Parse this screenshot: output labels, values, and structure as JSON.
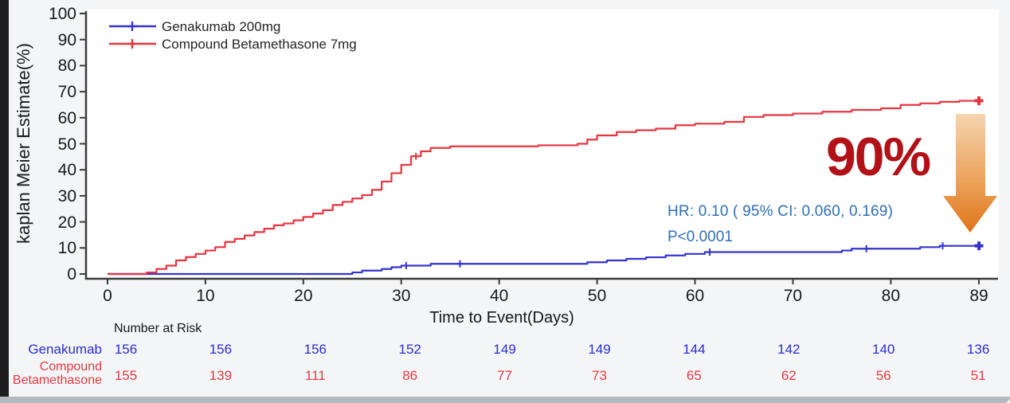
{
  "legend": [
    {
      "label": "Genakumab 200mg",
      "color": "#3534cf"
    },
    {
      "label": "Compound Betamethasone 7mg",
      "color": "#e63540"
    }
  ],
  "annotations": {
    "hr_text": "HR:  0.10  ( 95% CI:  0.060, 0.169)",
    "p_text": "P<0.0001",
    "big_pct": "90%",
    "big_pct_color": "#b11117",
    "note_color": "#2f6eb3",
    "arrow_icon_colors": {
      "top": "#f5d4b0",
      "mid": "#eca45c",
      "bottom": "#df751a"
    }
  },
  "chart_data": {
    "type": "line",
    "subtype": "kaplan-meier-step",
    "title": "",
    "xlabel": "Time to Event(Days)",
    "ylabel": "kaplan Meier Estimate(%)",
    "xlim": [
      0,
      89
    ],
    "ylim": [
      0,
      100
    ],
    "x_ticks": [
      0,
      10,
      20,
      30,
      40,
      50,
      60,
      70,
      80,
      89
    ],
    "y_ticks": [
      0,
      10,
      20,
      30,
      40,
      50,
      60,
      70,
      80,
      90,
      100
    ],
    "grid": false,
    "legend_position": "top-left",
    "series": [
      {
        "name": "Genakumab 200mg",
        "color": "#3534cf",
        "points": [
          [
            0,
            0
          ],
          [
            25,
            0.6
          ],
          [
            26,
            1.3
          ],
          [
            28,
            1.9
          ],
          [
            29,
            2.6
          ],
          [
            30,
            3.2
          ],
          [
            33,
            3.9
          ],
          [
            49,
            4.5
          ],
          [
            51,
            5.2
          ],
          [
            53,
            5.8
          ],
          [
            55,
            6.4
          ],
          [
            57,
            7.1
          ],
          [
            59,
            7.7
          ],
          [
            61,
            8.4
          ],
          [
            75,
            9.0
          ],
          [
            76,
            9.7
          ],
          [
            83,
            10.3
          ],
          [
            85,
            10.8
          ],
          [
            89,
            10.8
          ]
        ],
        "censor_marks": [
          [
            30.5,
            3.2
          ],
          [
            36,
            3.9
          ],
          [
            61.5,
            8.4
          ],
          [
            77.5,
            9.7
          ],
          [
            85.3,
            10.8
          ]
        ],
        "end_marker": [
          89,
          10.8
        ]
      },
      {
        "name": "Compound Betamethasone 7mg",
        "color": "#e63540",
        "points": [
          [
            0,
            0
          ],
          [
            4,
            0.6
          ],
          [
            5,
            1.9
          ],
          [
            6,
            3.2
          ],
          [
            7,
            5.2
          ],
          [
            8,
            6.5
          ],
          [
            9,
            7.7
          ],
          [
            10,
            9.0
          ],
          [
            11,
            10.3
          ],
          [
            12,
            12.3
          ],
          [
            13,
            13.5
          ],
          [
            14,
            14.8
          ],
          [
            15,
            16.1
          ],
          [
            16,
            17.4
          ],
          [
            17,
            18.7
          ],
          [
            18,
            19.4
          ],
          [
            19,
            20.6
          ],
          [
            20,
            21.9
          ],
          [
            21,
            23.2
          ],
          [
            22,
            24.5
          ],
          [
            23,
            26.5
          ],
          [
            24,
            27.7
          ],
          [
            25,
            29.0
          ],
          [
            26,
            30.3
          ],
          [
            27,
            32.3
          ],
          [
            28,
            35.5
          ],
          [
            29,
            38.7
          ],
          [
            30,
            41.9
          ],
          [
            31,
            45.2
          ],
          [
            32,
            47.1
          ],
          [
            33,
            48.4
          ],
          [
            35,
            49.0
          ],
          [
            44,
            49.4
          ],
          [
            48,
            50.0
          ],
          [
            49,
            51.6
          ],
          [
            50,
            53.2
          ],
          [
            52,
            54.5
          ],
          [
            54,
            55.2
          ],
          [
            56,
            55.8
          ],
          [
            58,
            57.1
          ],
          [
            60,
            57.7
          ],
          [
            63,
            58.4
          ],
          [
            65,
            60.3
          ],
          [
            67,
            61.0
          ],
          [
            70,
            61.6
          ],
          [
            73,
            62.3
          ],
          [
            76,
            63.0
          ],
          [
            79,
            63.6
          ],
          [
            81,
            64.9
          ],
          [
            83,
            65.5
          ],
          [
            85,
            66.1
          ],
          [
            87,
            66.5
          ],
          [
            89,
            66.5
          ]
        ],
        "censor_marks": [
          [
            31.5,
            45.2
          ]
        ],
        "end_marker": [
          89,
          66.5
        ]
      }
    ]
  },
  "risk_table": {
    "header": "Number at Risk",
    "columns_days": [
      0,
      10,
      20,
      30,
      40,
      50,
      60,
      70,
      80,
      89
    ],
    "rows": [
      {
        "label_lines": [
          "Genakumab"
        ],
        "color": "blue",
        "values": [
          "156",
          "156",
          "156",
          "152",
          "149",
          "149",
          "144",
          "142",
          "140",
          "136"
        ]
      },
      {
        "label_lines": [
          "Compound",
          "Betamethasone"
        ],
        "color": "red",
        "values": [
          "155",
          "139",
          "111",
          "86",
          "77",
          "73",
          "65",
          "62",
          "56",
          "51"
        ]
      }
    ]
  }
}
